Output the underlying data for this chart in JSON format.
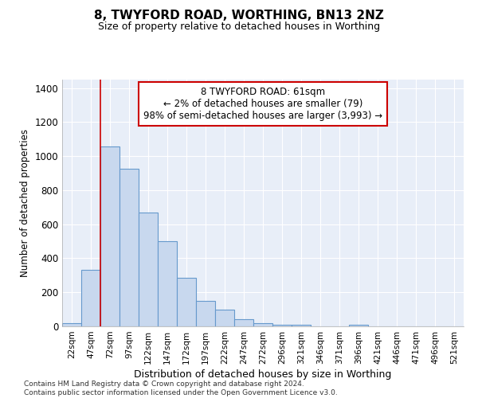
{
  "title": "8, TWYFORD ROAD, WORTHING, BN13 2NZ",
  "subtitle": "Size of property relative to detached houses in Worthing",
  "xlabel": "Distribution of detached houses by size in Worthing",
  "ylabel": "Number of detached properties",
  "bar_color": "#c8d8ee",
  "bar_edge_color": "#6699cc",
  "background_color": "#e8eef8",
  "grid_color": "#ffffff",
  "categories": [
    "22sqm",
    "47sqm",
    "72sqm",
    "97sqm",
    "122sqm",
    "147sqm",
    "172sqm",
    "197sqm",
    "222sqm",
    "247sqm",
    "272sqm",
    "296sqm",
    "321sqm",
    "346sqm",
    "371sqm",
    "396sqm",
    "421sqm",
    "446sqm",
    "471sqm",
    "496sqm",
    "521sqm"
  ],
  "values": [
    20,
    330,
    1055,
    925,
    670,
    500,
    285,
    150,
    100,
    40,
    20,
    10,
    10,
    0,
    0,
    10,
    0,
    0,
    0,
    0,
    0
  ],
  "ylim": [
    0,
    1450
  ],
  "yticks": [
    0,
    200,
    400,
    600,
    800,
    1000,
    1200,
    1400
  ],
  "property_line_x": 1.5,
  "annotation_text": "8 TWYFORD ROAD: 61sqm\n← 2% of detached houses are smaller (79)\n98% of semi-detached houses are larger (3,993) →",
  "annotation_box_color": "#ffffff",
  "annotation_border_color": "#cc0000",
  "footer": "Contains HM Land Registry data © Crown copyright and database right 2024.\nContains public sector information licensed under the Open Government Licence v3.0."
}
